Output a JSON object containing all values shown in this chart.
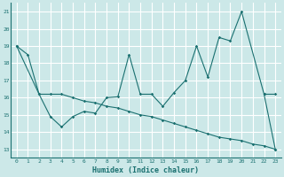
{
  "xlabel": "Humidex (Indice chaleur)",
  "bg_color": "#cce8e8",
  "grid_color": "#ffffff",
  "line_color": "#1a7070",
  "x_ticks": [
    0,
    1,
    2,
    3,
    4,
    5,
    6,
    7,
    8,
    9,
    10,
    11,
    12,
    13,
    14,
    15,
    16,
    17,
    18,
    19,
    20,
    21,
    22,
    23
  ],
  "y_ticks": [
    13,
    14,
    15,
    16,
    17,
    18,
    19,
    20,
    21
  ],
  "ylim": [
    12.5,
    21.5
  ],
  "xlim": [
    -0.5,
    23.5
  ],
  "line1_x": [
    0,
    1,
    2,
    3,
    4,
    5,
    6,
    7,
    8,
    9,
    10,
    11,
    12,
    13,
    14,
    15,
    16,
    17,
    18,
    19,
    20,
    22,
    23
  ],
  "line1_y": [
    19.0,
    18.5,
    16.2,
    14.9,
    14.3,
    14.9,
    15.2,
    15.1,
    16.0,
    16.05,
    18.5,
    16.2,
    16.2,
    15.5,
    16.3,
    17.0,
    19.0,
    17.2,
    19.5,
    19.3,
    21.0,
    16.2,
    16.2
  ],
  "line2_x": [
    0,
    2,
    3,
    4,
    5,
    6,
    7,
    8,
    9,
    10,
    11,
    12,
    13,
    14,
    15,
    16,
    17,
    18,
    19,
    20,
    21,
    22,
    23
  ],
  "line2_y": [
    19.0,
    16.2,
    16.2,
    16.2,
    16.0,
    15.8,
    15.7,
    15.5,
    15.4,
    15.2,
    15.0,
    14.9,
    14.7,
    14.5,
    14.3,
    14.1,
    13.9,
    13.7,
    13.6,
    13.5,
    13.3,
    13.2,
    13.0
  ],
  "line3_x": [
    22,
    23
  ],
  "line3_y": [
    16.2,
    13.0
  ]
}
